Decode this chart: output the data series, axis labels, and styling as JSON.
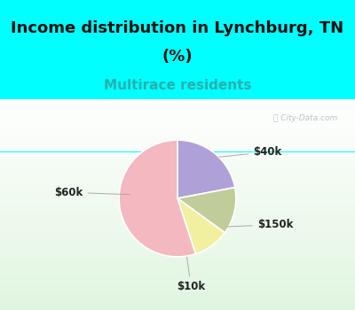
{
  "title_line1": "Income distribution in Lynchburg, TN",
  "title_line2": "(%)",
  "subtitle": "Multirace residents",
  "title_fontsize": 13,
  "subtitle_fontsize": 11,
  "slices": [
    {
      "label": "$40k",
      "value": 22,
      "color": "#b0a0d8"
    },
    {
      "label": "$150k",
      "value": 13,
      "color": "#c0cd9a"
    },
    {
      "label": "$10k",
      "value": 10,
      "color": "#f0f0a0"
    },
    {
      "label": "$60k",
      "value": 55,
      "color": "#f4b8c0"
    }
  ],
  "bg_color": "#00ffff",
  "watermark": "City-Data.com",
  "startangle": 90,
  "label_fontsize": 8.5
}
